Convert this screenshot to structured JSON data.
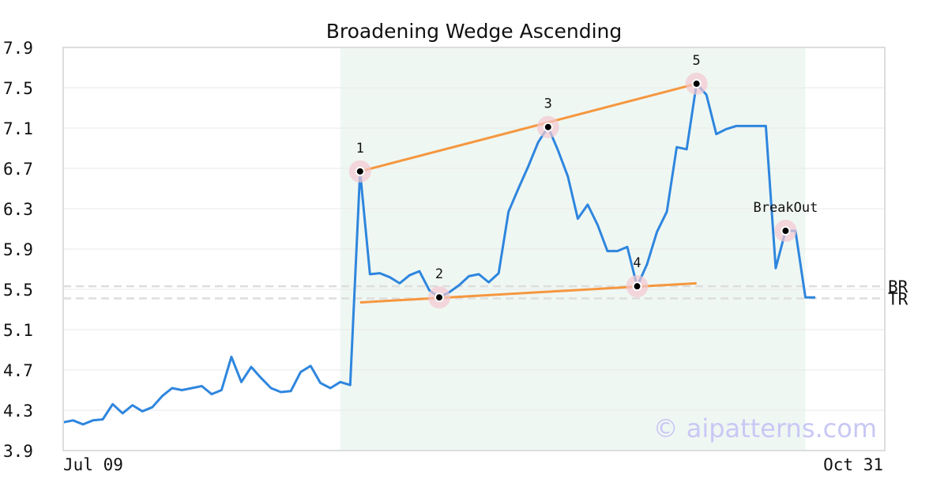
{
  "chart_data": {
    "type": "line",
    "title": "Broadening Wedge Ascending",
    "xlabel": "",
    "ylabel": "",
    "ylim": [
      3.9,
      7.9
    ],
    "x_tick_labels": [
      "Jul 09",
      "Oct 31"
    ],
    "y_ticks": [
      "3.9",
      "4.3",
      "4.7",
      "5.1",
      "5.5",
      "5.9",
      "6.3",
      "6.7",
      "7.1",
      "7.5",
      "7.9"
    ],
    "grid": true,
    "series": [
      {
        "color": "#2e86de",
        "values": [
          4.18,
          4.2,
          4.16,
          4.2,
          4.21,
          4.36,
          4.27,
          4.35,
          4.29,
          4.33,
          4.44,
          4.52,
          4.5,
          4.52,
          4.54,
          4.46,
          4.5,
          4.83,
          4.58,
          4.73,
          4.62,
          4.52,
          4.48,
          4.49,
          4.68,
          4.74,
          4.57,
          4.52,
          4.58,
          4.55,
          6.67,
          5.65,
          5.66,
          5.62,
          5.56,
          5.64,
          5.68,
          5.49,
          5.42,
          5.47,
          5.54,
          5.63,
          5.65,
          5.57,
          5.66,
          6.27,
          6.5,
          6.72,
          6.96,
          7.11,
          6.88,
          6.62,
          6.2,
          6.34,
          6.14,
          5.88,
          5.88,
          5.92,
          5.53,
          5.75,
          6.07,
          6.27,
          6.91,
          6.89,
          7.54,
          7.43,
          7.04,
          7.09,
          7.12,
          7.12,
          7.12,
          7.12,
          5.71,
          6.08,
          6.08,
          5.42,
          5.42
        ]
      }
    ],
    "pattern_lines": [
      {
        "color": "#f5973f",
        "x": [
          30,
          64
        ],
        "y": [
          6.67,
          7.54
        ]
      },
      {
        "color": "#f5973f",
        "x": [
          30,
          64
        ],
        "y": [
          5.37,
          5.56
        ]
      }
    ],
    "reference_lines": [
      {
        "label": "BR",
        "y": 5.53,
        "color": "#dddddd"
      },
      {
        "label": "TR",
        "y": 5.41,
        "color": "#dddddd"
      }
    ],
    "highlight_region": {
      "x_start": 28,
      "x_end": 75,
      "color": "#eff7f3"
    },
    "points": [
      {
        "label": "1",
        "x": 30,
        "y": 6.67
      },
      {
        "label": "2",
        "x": 38,
        "y": 5.42
      },
      {
        "label": "3",
        "x": 49,
        "y": 7.11
      },
      {
        "label": "4",
        "x": 58,
        "y": 5.53
      },
      {
        "label": "5",
        "x": 64,
        "y": 7.54
      },
      {
        "label": "BreakOut",
        "x": 73,
        "y": 6.08
      }
    ]
  },
  "watermark": "© aipatterns.com",
  "colors": {
    "watermark": "#c8c8f5",
    "plot_border": "#dddddd",
    "grid": "#e8e8e8"
  }
}
